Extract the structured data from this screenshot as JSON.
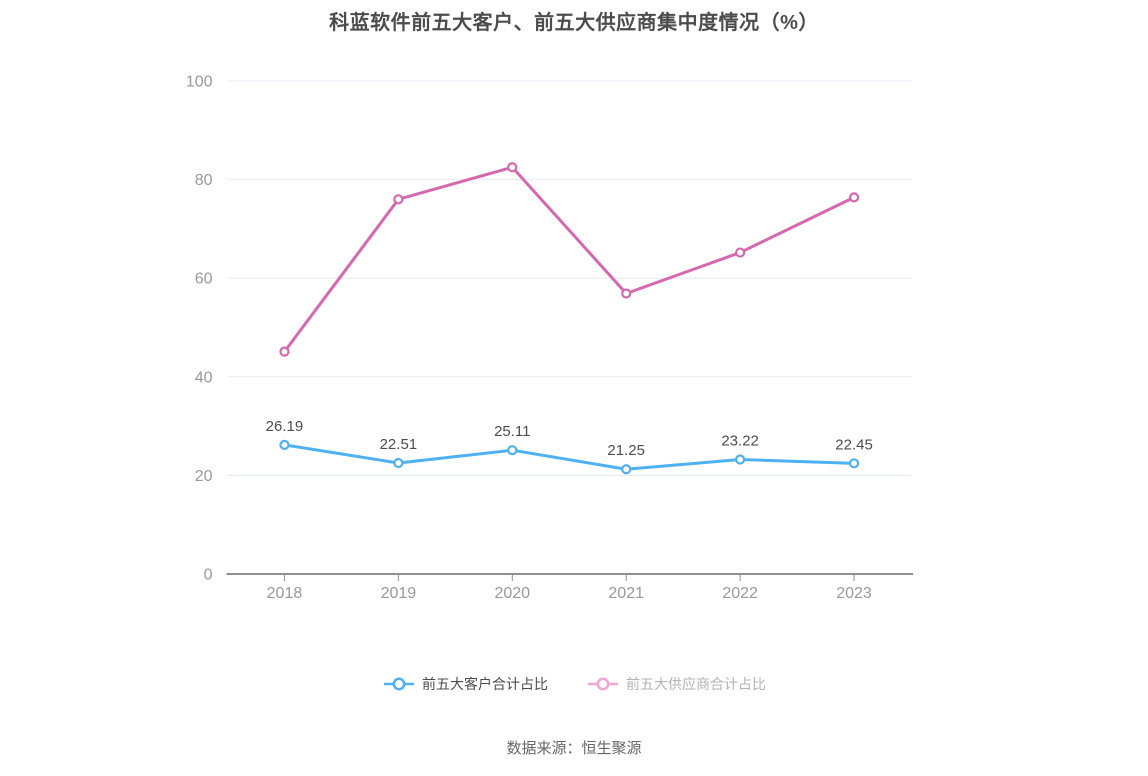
{
  "chart_data": {
    "type": "line",
    "title": "科蓝软件前五大客户、前五大供应商集中度情况（%）",
    "source": "数据来源：恒生聚源",
    "categories": [
      "2018",
      "2019",
      "2020",
      "2021",
      "2022",
      "2023"
    ],
    "series": [
      {
        "name": "前五大客户合计占比",
        "color": "#4DB1F2",
        "legend_icon_color": "#4DB1F2",
        "legend_text_color": "#4D4D4D",
        "values": [
          26.19,
          22.51,
          25.11,
          21.25,
          23.22,
          22.45
        ],
        "data_labels": [
          "26.19",
          "22.51",
          "25.11",
          "21.25",
          "23.22",
          "22.45"
        ],
        "show_labels": true
      },
      {
        "name": "前五大供应商合计占比",
        "color": "#D668B0",
        "legend_icon_color": "#F0A6D2",
        "legend_text_color": "#B3B3B3",
        "values": [
          45.1,
          76.0,
          82.5,
          56.9,
          65.2,
          76.4
        ],
        "data_labels": [],
        "show_labels": false
      }
    ],
    "ylim": [
      0,
      100
    ],
    "yticks": [
      0,
      20,
      40,
      60,
      80,
      100
    ],
    "grid": true,
    "legend_position": "bottom",
    "style": {
      "background": "#FFFFFF",
      "grid_color": "#E6EBF4",
      "axis_color": "#8F8F8F",
      "tick_label_color": "#999999",
      "data_label_color": "#4D4D4D",
      "title_color": "#4C4C4C",
      "source_color": "#666666"
    }
  }
}
